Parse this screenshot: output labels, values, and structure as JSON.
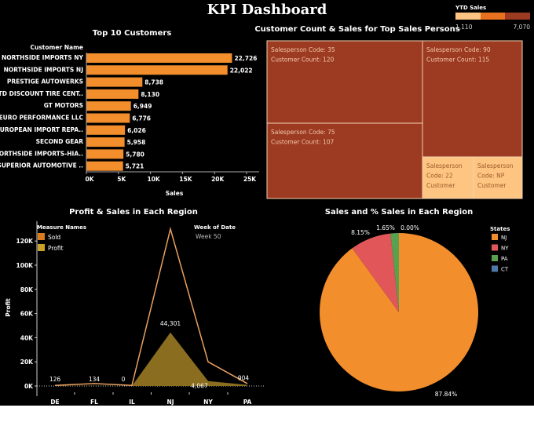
{
  "dashboard_title": "KPI Dashboard",
  "chart_data": [
    {
      "type": "bar",
      "title": "Top 10 Customers",
      "category_header": "Customer Name",
      "xlabel": "Sales",
      "xlim": [
        0,
        25000
      ],
      "ticks": [
        "0K",
        "5K",
        "10K",
        "15K",
        "20K",
        "25K"
      ],
      "categories": [
        "NORTHSIDE IMPORTS NY",
        "NORTHSIDE IMPORTS NJ",
        "PRESTIGE AUTOWERKS",
        "ETD DISCOUNT TIRE CENT..",
        "GT MOTORS",
        "EURO PERFORMANCE LLC",
        "EUROPEAN IMPORT REPA..",
        "SECOND GEAR",
        "NORTHSIDE IMPORTS-HIA..",
        "SUPERIOR AUTOMOTIVE .."
      ],
      "values": [
        22726,
        22022,
        8738,
        8130,
        6949,
        6776,
        6026,
        5958,
        5780,
        5721
      ],
      "value_labels": [
        "22,726",
        "22,022",
        "8,738",
        "8,130",
        "6,949",
        "6,776",
        "6,026",
        "5,958",
        "5,780",
        "5,721"
      ],
      "color": "#f28e2b"
    },
    {
      "type": "treemap",
      "title": "Customer Count & Sales for Top Sales Persons",
      "legend": {
        "title": "YTD Sales",
        "min_label": "1,110",
        "max_label": "7,070",
        "colors": [
          "#fdc581",
          "#e8701f",
          "#9c3a22"
        ]
      },
      "tiles": [
        {
          "line1": "Salesperson Code: 35",
          "line2": "Customer Count: 120",
          "color": "#9c3a22"
        },
        {
          "line1": "Salesperson Code: 90",
          "line2": "Customer Count: 115",
          "color": "#9c3a22"
        },
        {
          "line1": "Salesperson Code: 75",
          "line2": "Customer Count: 107",
          "color": "#9c3a22"
        },
        {
          "line1": "Salesperson",
          "line2": "Code: 22",
          "line3": "Customer",
          "color": "#fdc581"
        },
        {
          "line1": "Salesperson",
          "line2": "Code: NP",
          "line3": "Customer",
          "color": "#fdc581"
        }
      ]
    },
    {
      "type": "area",
      "title": "Profit & Sales in Each Region",
      "ylabel": "Profit",
      "ylim": [
        0,
        130000
      ],
      "yticks": [
        "0K",
        "20K",
        "40K",
        "60K",
        "80K",
        "100K",
        "120K"
      ],
      "categories": [
        "DE",
        "FL",
        "IL",
        "NJ",
        "NY",
        "PA"
      ],
      "legend": {
        "title": "Measure Names",
        "placement": "top-left"
      },
      "filter": {
        "title": "Week of Date",
        "value": "Week 50"
      },
      "series": [
        {
          "name": "Sold",
          "values": [
            500,
            2000,
            500,
            130000,
            20000,
            2000
          ],
          "color": "#e8a060"
        },
        {
          "name": "Profit",
          "values": [
            126,
            134,
            0,
            44301,
            4067,
            904
          ],
          "labels": [
            "126",
            "134",
            "0",
            "44,301",
            "4,067",
            "904"
          ],
          "color": "#8a6d1f"
        }
      ],
      "legend_colors": [
        "#d97a1c",
        "#c9a227"
      ]
    },
    {
      "type": "pie",
      "title": "Sales and % Sales in Each Region",
      "legend_title": "States",
      "labels": [
        "NJ",
        "NY",
        "PA",
        "CT"
      ],
      "values": [
        87.84,
        8.15,
        1.65,
        0.0
      ],
      "value_labels": [
        "87.84%",
        "8.15%",
        "1.65%",
        "0.00%"
      ],
      "colors": [
        "#f28e2b",
        "#e15759",
        "#59a14f",
        "#4e79a7"
      ]
    }
  ]
}
